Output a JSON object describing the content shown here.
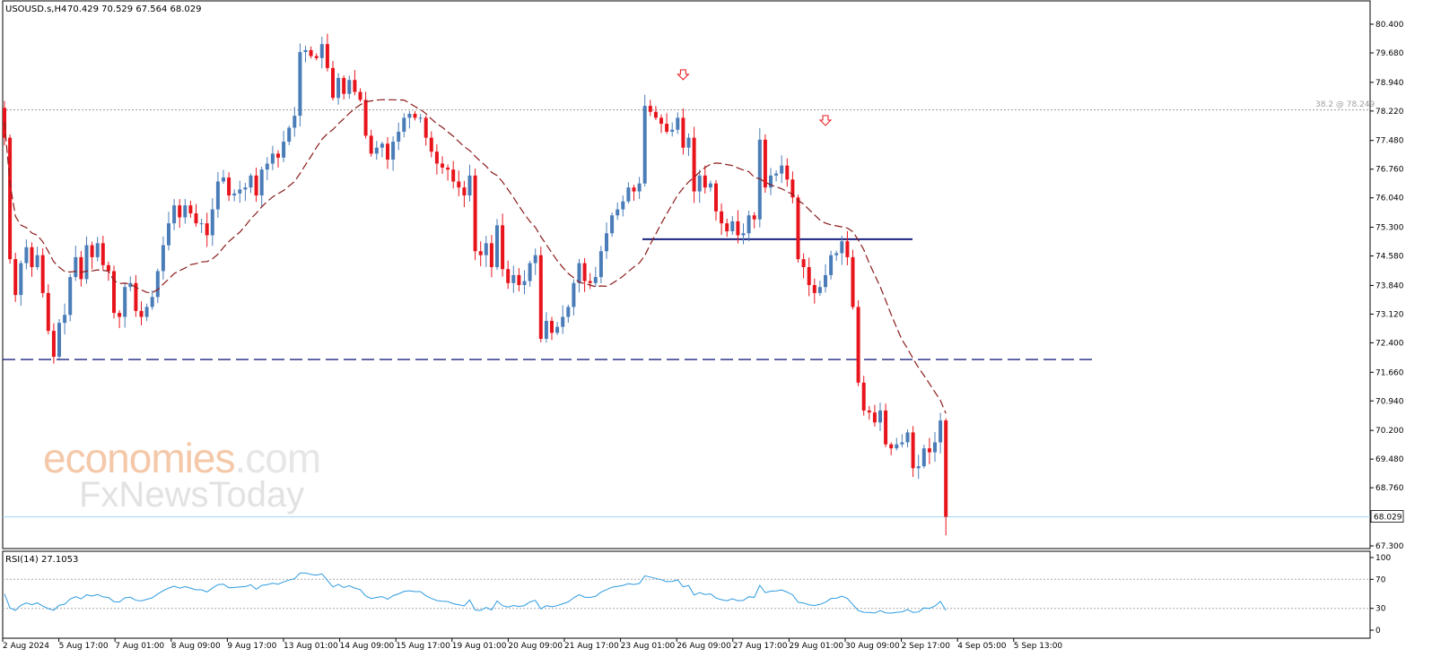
{
  "header": {
    "symbol": "USOUSD.s,H4",
    "ohlc": "70.429 70.529 67.564 68.029"
  },
  "watermark": {
    "brand": "economies",
    "brand_suffix": ".com",
    "sub": "FxNewsToday"
  },
  "fib_label": "38.2 @ 78.249",
  "current_price_label": "68.029",
  "rsi": {
    "label": "RSI(14) 27.1053",
    "ticks": [
      "100",
      "70",
      "30",
      "0"
    ],
    "levels": [
      70,
      30
    ]
  },
  "colors": {
    "bull": "#4a7db8",
    "bear": "#e8141c",
    "ma": "#8b1a1a",
    "support": "#1a237e",
    "current": "#9fd6f0",
    "rsi_line": "#2e9be0"
  },
  "chart_data": {
    "type": "candlestick",
    "price_ticks": [
      80.4,
      79.68,
      78.94,
      78.22,
      77.48,
      76.76,
      76.04,
      75.3,
      74.58,
      73.84,
      73.12,
      72.4,
      71.66,
      70.94,
      70.2,
      69.48,
      68.76,
      67.3
    ],
    "price_tick_labels": [
      "80.400",
      "79.680",
      "78.940",
      "78.220",
      "77.480",
      "76.760",
      "76.040",
      "75.300",
      "74.580",
      "73.840",
      "73.120",
      "72.400",
      "71.660",
      "70.940",
      "70.200",
      "69.480",
      "68.760",
      "67.300"
    ],
    "ylim": [
      67.08,
      80.82
    ],
    "x_labels": [
      "2 Aug 2024",
      "5 Aug 17:00",
      "7 Aug 01:00",
      "8 Aug 09:00",
      "9 Aug 17:00",
      "13 Aug 01:00",
      "14 Aug 09:00",
      "15 Aug 17:00",
      "19 Aug 01:00",
      "20 Aug 09:00",
      "21 Aug 17:00",
      "23 Aug 01:00",
      "26 Aug 09:00",
      "27 Aug 17:00",
      "29 Aug 01:00",
      "30 Aug 09:00",
      "2 Sep 17:00",
      "4 Sep 05:00",
      "5 Sep 13:00"
    ],
    "horizontal_levels": {
      "fib_38_2": 78.249,
      "support_dashed": 71.98,
      "resistance_solid": 75.0,
      "current": 68.029
    },
    "closes": [
      77.55,
      74.5,
      73.6,
      74.4,
      74.8,
      74.3,
      74.6,
      73.65,
      72.7,
      72.05,
      72.9,
      73.1,
      74.05,
      74.55,
      74.0,
      74.85,
      74.55,
      74.9,
      74.35,
      74.2,
      73.15,
      73.05,
      73.8,
      73.9,
      73.2,
      73.05,
      73.3,
      73.55,
      74.2,
      74.85,
      75.4,
      75.85,
      75.55,
      75.85,
      75.65,
      75.4,
      75.4,
      75.1,
      75.75,
      76.45,
      76.55,
      76.1,
      76.15,
      76.25,
      76.3,
      76.6,
      76.1,
      76.75,
      76.9,
      77.15,
      77.05,
      77.45,
      77.8,
      78.1,
      79.7,
      79.75,
      79.6,
      79.55,
      79.9,
      79.3,
      78.55,
      79.05,
      78.65,
      79.0,
      78.7,
      78.5,
      77.6,
      77.15,
      77.3,
      77.4,
      77.0,
      77.45,
      77.7,
      78.05,
      78.15,
      78.05,
      78.05,
      77.55,
      77.2,
      76.9,
      76.8,
      76.75,
      76.45,
      76.3,
      76.1,
      76.6,
      74.7,
      74.6,
      74.9,
      74.3,
      75.35,
      74.25,
      73.9,
      74.1,
      73.85,
      73.95,
      74.4,
      74.6,
      72.5,
      72.95,
      72.65,
      72.8,
      73.05,
      73.3,
      73.9,
      74.4,
      73.95,
      73.9,
      74.05,
      74.7,
      75.15,
      75.6,
      75.75,
      75.95,
      76.3,
      76.2,
      76.4,
      78.35,
      78.2,
      78.05,
      77.9,
      77.7,
      77.75,
      78.05,
      77.3,
      77.55,
      76.2,
      76.6,
      76.3,
      76.4,
      75.7,
      75.4,
      75.2,
      75.45,
      75.1,
      75.15,
      75.6,
      75.5,
      77.5,
      76.3,
      76.6,
      76.65,
      76.85,
      76.5,
      76.05,
      74.5,
      74.3,
      73.85,
      73.65,
      73.8,
      74.1,
      74.6,
      74.65,
      74.95,
      74.55,
      73.3,
      71.4,
      70.7,
      70.65,
      70.4,
      70.7,
      69.85,
      69.75,
      69.85,
      69.9,
      70.15,
      69.25,
      69.3,
      69.75,
      69.65,
      69.9,
      70.45,
      68.03
    ]
  }
}
